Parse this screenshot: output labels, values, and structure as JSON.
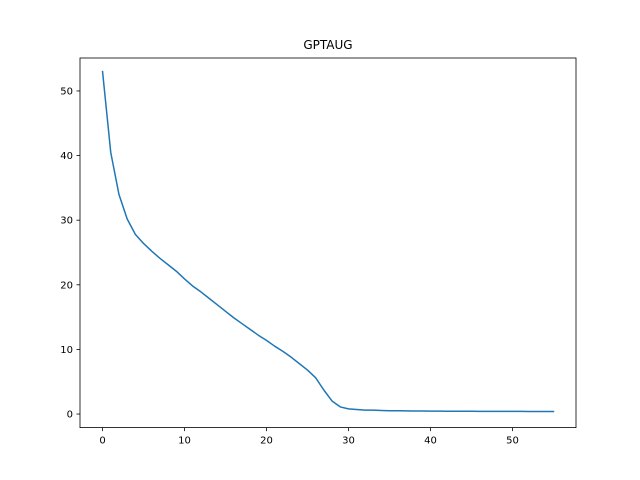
{
  "chart_data": {
    "type": "line",
    "title": "GPTAUG",
    "xlabel": "",
    "ylabel": "",
    "xlim": [
      -2.75,
      57.75
    ],
    "ylim": [
      -2.1,
      55.1
    ],
    "xticks": [
      0,
      10,
      20,
      30,
      40,
      50
    ],
    "yticks": [
      0,
      10,
      20,
      30,
      40,
      50
    ],
    "grid": false,
    "series": [
      {
        "color": "#1f77b4",
        "x": [
          0,
          1,
          2,
          3,
          4,
          5,
          6,
          7,
          8,
          9,
          10,
          11,
          12,
          13,
          14,
          15,
          16,
          17,
          18,
          19,
          20,
          21,
          22,
          23,
          24,
          25,
          26,
          27,
          28,
          29,
          30,
          31,
          32,
          33,
          34,
          35,
          36,
          37,
          38,
          39,
          40,
          41,
          42,
          43,
          44,
          45,
          46,
          47,
          48,
          49,
          50,
          51,
          52,
          53,
          54,
          55
        ],
        "y": [
          53.0,
          40.5,
          34.0,
          30.2,
          27.8,
          26.4,
          25.2,
          24.1,
          23.1,
          22.1,
          20.9,
          19.8,
          18.9,
          17.9,
          16.9,
          15.9,
          14.9,
          14.0,
          13.1,
          12.2,
          11.4,
          10.5,
          9.7,
          8.8,
          7.8,
          6.8,
          5.6,
          3.7,
          2.0,
          1.1,
          0.8,
          0.7,
          0.6,
          0.6,
          0.55,
          0.5,
          0.5,
          0.48,
          0.47,
          0.46,
          0.45,
          0.45,
          0.44,
          0.44,
          0.43,
          0.43,
          0.42,
          0.42,
          0.42,
          0.41,
          0.41,
          0.41,
          0.4,
          0.4,
          0.4,
          0.4
        ]
      }
    ]
  }
}
